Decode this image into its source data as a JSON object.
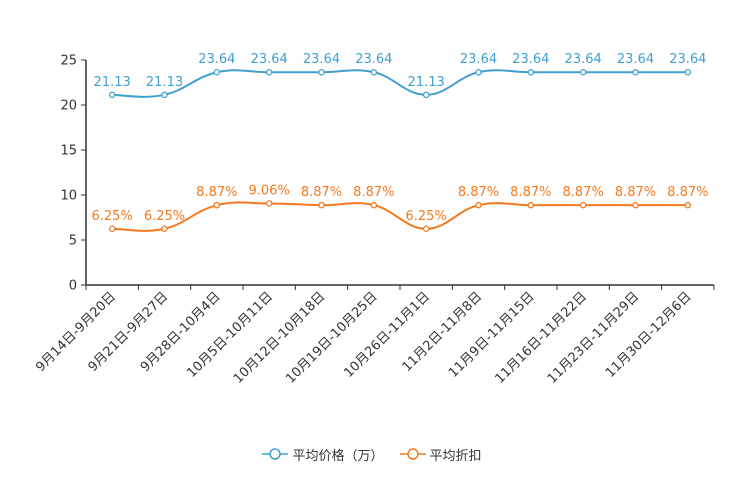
{
  "chart_data": {
    "type": "line",
    "categories": [
      "9月14日-9月20日",
      "9月21日-9月27日",
      "9月28日-10月4日",
      "10月5日-10月11日",
      "10月12日-10月18日",
      "10月19日-10月25日",
      "10月26日-11月1日",
      "11月2日-11月8日",
      "11月9日-11月15日",
      "11月16日-11月22日",
      "11月23日-11月29日",
      "11月30日-12月6日"
    ],
    "series": [
      {
        "name": "平均价格（万）",
        "color": "#3fa0d0",
        "values": [
          21.13,
          21.13,
          23.64,
          23.64,
          23.64,
          23.64,
          21.13,
          23.64,
          23.64,
          23.64,
          23.64,
          23.64
        ],
        "labels": [
          "21.13",
          "21.13",
          "23.64",
          "23.64",
          "23.64",
          "23.64",
          "21.13",
          "23.64",
          "23.64",
          "23.64",
          "23.64",
          "23.64"
        ]
      },
      {
        "name": "平均折扣",
        "color": "#f57a1f",
        "values": [
          6.25,
          6.25,
          8.87,
          9.06,
          8.87,
          8.87,
          6.25,
          8.87,
          8.87,
          8.87,
          8.87,
          8.87
        ],
        "labels": [
          "6.25%",
          "6.25%",
          "8.87%",
          "9.06%",
          "8.87%",
          "8.87%",
          "6.25%",
          "8.87%",
          "8.87%",
          "8.87%",
          "8.87%",
          "8.87%"
        ]
      }
    ],
    "yticks": [
      "0",
      "5",
      "10",
      "15",
      "20",
      "25"
    ],
    "ylim": [
      0,
      25
    ],
    "title": "",
    "xlabel": "",
    "ylabel": "",
    "legend_position": "bottom"
  },
  "legend": [
    "平均价格（万）",
    "平均折扣"
  ]
}
